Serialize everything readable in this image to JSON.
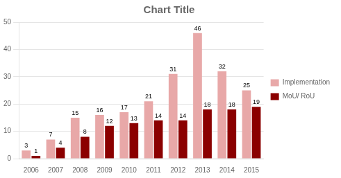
{
  "chart_data": {
    "type": "bar",
    "title": "Chart Title",
    "categories": [
      "2006",
      "2007",
      "2008",
      "2009",
      "2010",
      "2011",
      "2012",
      "2013",
      "2014",
      "2015"
    ],
    "series": [
      {
        "name": "Implementation",
        "color": "#e8a8a8",
        "values": [
          3,
          7,
          15,
          16,
          17,
          21,
          31,
          46,
          32,
          25
        ]
      },
      {
        "name": "MoU/ RoU",
        "color": "#8b0000",
        "values": [
          1,
          4,
          8,
          12,
          13,
          14,
          14,
          18,
          18,
          19
        ]
      }
    ],
    "ylim": [
      0,
      50
    ],
    "yticks": [
      0,
      10,
      20,
      30,
      40,
      50
    ],
    "grid": true,
    "legend": "right",
    "data_labels": true
  }
}
